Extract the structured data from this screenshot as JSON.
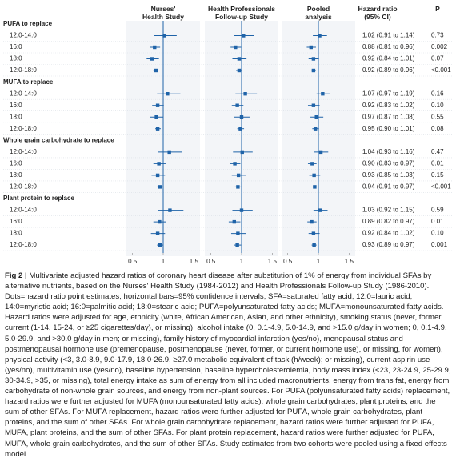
{
  "chart_data": {
    "type": "forest",
    "groups": [
      {
        "label": "PUFA to replace",
        "rows": [
          "12:0-14:0",
          "16:0",
          "18:0",
          "12:0-18:0"
        ]
      },
      {
        "label": "MUFA to replace",
        "rows": [
          "12:0-14:0",
          "16:0",
          "18:0",
          "12:0-18:0"
        ]
      },
      {
        "label": "Whole grain carbohydrate to replace",
        "rows": [
          "12:0-14:0",
          "16:0",
          "18:0",
          "12:0-18:0"
        ]
      },
      {
        "label": "Plant protein to replace",
        "rows": [
          "12:0-14:0",
          "16:0",
          "18:0",
          "12:0-18:0"
        ]
      }
    ],
    "panels": [
      {
        "title": "Nurses' Health Study",
        "values": [
          1.02,
          0.86,
          0.82,
          0.88,
          1.07,
          0.91,
          0.89,
          0.91,
          1.1,
          0.93,
          0.91,
          0.95,
          1.11,
          0.94,
          0.91,
          0.95
        ],
        "lower": [
          0.85,
          0.78,
          0.73,
          0.84,
          0.9,
          0.82,
          0.79,
          0.87,
          0.92,
          0.84,
          0.81,
          0.9,
          0.92,
          0.84,
          0.8,
          0.9
        ],
        "upper": [
          1.22,
          0.95,
          0.93,
          0.92,
          1.28,
          1.01,
          1.0,
          0.96,
          1.3,
          1.04,
          1.03,
          1.0,
          1.33,
          1.05,
          1.03,
          1.0
        ]
      },
      {
        "title": "Health Professionals Follow-up Study",
        "values": [
          1.03,
          0.9,
          0.96,
          0.96,
          1.06,
          0.93,
          1.0,
          0.98,
          1.01,
          0.89,
          0.95,
          0.94,
          1.0,
          0.88,
          0.94,
          0.93
        ],
        "lower": [
          0.88,
          0.82,
          0.85,
          0.91,
          0.9,
          0.84,
          0.88,
          0.93,
          0.86,
          0.81,
          0.84,
          0.89,
          0.85,
          0.79,
          0.83,
          0.88
        ],
        "upper": [
          1.2,
          0.99,
          1.08,
          1.01,
          1.25,
          1.03,
          1.13,
          1.04,
          1.18,
          0.98,
          1.07,
          0.99,
          1.18,
          0.98,
          1.07,
          0.99
        ]
      },
      {
        "title": "Pooled analysis",
        "values": [
          1.02,
          0.88,
          0.92,
          0.92,
          1.07,
          0.92,
          0.97,
          0.95,
          1.04,
          0.9,
          0.93,
          0.94,
          1.03,
          0.89,
          0.92,
          0.93
        ],
        "lower": [
          0.91,
          0.81,
          0.84,
          0.89,
          0.97,
          0.83,
          0.87,
          0.9,
          0.93,
          0.83,
          0.85,
          0.91,
          0.92,
          0.82,
          0.84,
          0.89
        ],
        "upper": [
          1.14,
          0.96,
          1.01,
          0.96,
          1.19,
          1.02,
          1.08,
          1.01,
          1.16,
          0.97,
          1.03,
          0.97,
          1.15,
          0.97,
          1.02,
          0.97
        ],
        "value_labels": [
          "1.02 (0.91 to 1.14)",
          "0.88 (0.81 to 0.96)",
          "0.92 (0.84 to 1.01)",
          "0.92 (0.89 to 0.96)",
          "1.07 (0.97 to 1.19)",
          "0.92 (0.83 to 1.02)",
          "0.97 (0.87 to 1.08)",
          "0.95 (0.90 to 1.01)",
          "1.04 (0.93 to 1.16)",
          "0.90 (0.83 to 0.97)",
          "0.93 (0.85 to 1.03)",
          "0.94 (0.91 to 0.97)",
          "1.03 (0.92 to 1.15)",
          "0.89 (0.82 to 0.97)",
          "0.92 (0.84 to 1.02)",
          "0.93 (0.89 to 0.97)"
        ]
      }
    ],
    "hr_header": "Hazard ratio (95% CI)",
    "p_header": "P",
    "p_labels": [
      "0.73",
      "0.002",
      "0.07",
      "<0.001",
      "0.16",
      "0.10",
      "0.55",
      "0.08",
      "0.47",
      "0.01",
      "0.15",
      "<0.001",
      "0.59",
      "0.01",
      "0.10",
      "0.001"
    ],
    "xlim": [
      0.4,
      1.6
    ],
    "xticks": [
      0.5,
      1,
      1.5
    ],
    "reference": 1,
    "color": "#1f63a8"
  },
  "caption": {
    "label": "Fig 2 |",
    "text": "Multivariate adjusted hazard ratios of coronary heart disease after substitution of 1% of energy from individual SFAs by alternative nutrients, based on the Nurses' Health Study (1984-2012) and Health Professionals Follow-up Study (1986-2010). Dots=hazard ratio point estimates; horizontal bars=95% confidence intervals; SFA=saturated fatty acid; 12:0=lauric acid; 14:0=myristic acid; 16:0=palmitic acid; 18:0=stearic acid; PUFA=polyunsaturated fatty acids; MUFA=monounsaturated fatty acids. Hazard ratios were adjusted for age, ethnicity (white, African American, Asian, and other ethnicity), smoking status (never, former, current (1-14, 15-24, or ≥25 cigarettes/day), or missing), alcohol intake (0, 0.1-4.9, 5.0-14.9, and >15.0 g/day in women; 0, 0.1-4.9, 5.0-29.9, and >30.0 g/day in men; or missing), family history of myocardial infarction (yes/no), menopausal status and postmenopausal hormone use (premenopause, postmenopause (never, former, or current hormone use), or missing, for women), physical activity (<3, 3.0-8.9, 9.0-17.9, 18.0-26.9, ≥27.0 metabolic equivalent of task (h/week); or missing), current aspirin use (yes/no), multivitamin use (yes/no), baseline hypertension, baseline hypercholesterolemia, body mass index (<23, 23-24.9, 25-29.9, 30-34.9, >35, or missing), total energy intake as sum of energy from all included macronutrients, energy from trans fat, energy from carbohydrate of non-whole grain sources, and energy from non-plant sources. For PUFA (polyunsaturated fatty acids) replacement, hazard ratios were further adjusted for MUFA (monounsaturated fatty acids), whole grain carbohydrates, plant proteins, and the sum of other SFAs. For MUFA replacement, hazard ratios were further adjusted for PUFA, whole grain carbohydrates, plant proteins, and the sum of other SFAs. For whole grain carbohydrate replacement, hazard ratios were further adjusted for PUFA, MUFA, plant proteins, and the sum of other SFAs. For plant protein replacement, hazard ratios were further adjusted for PUFA, MUFA, whole grain carbohydrates, and the sum of other SFAs. Study estimates from two cohorts were pooled using a fixed effects model"
  }
}
